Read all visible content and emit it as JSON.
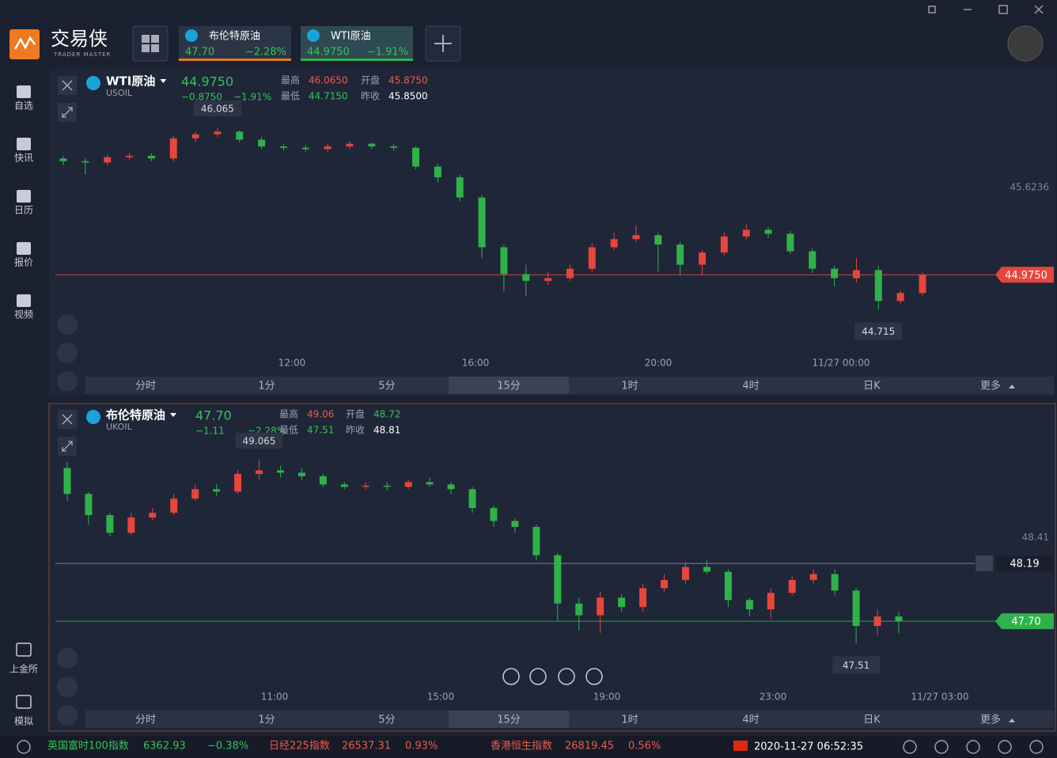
{
  "app": {
    "logo_text": "交易侠",
    "logo_sub": "TRADER MASTER"
  },
  "tabs": [
    {
      "name": "布伦特原油",
      "price": "47.70",
      "change": "−2.28%"
    },
    {
      "name": "WTI原油",
      "price": "44.9750",
      "change": "−1.91%"
    }
  ],
  "sidebar": [
    "自选",
    "快讯",
    "日历",
    "报价",
    "视频"
  ],
  "sidebar_bottom": [
    "上金所",
    "模拟"
  ],
  "panels": [
    {
      "symbol": "WTI原油",
      "code": "USOIL",
      "price": "44.9750",
      "change": "−0.8750",
      "change_pct": "−1.91%",
      "stats": [
        {
          "label": "最高",
          "value": "46.0650",
          "color": "#f05a4a"
        },
        {
          "label": "开盘",
          "value": "45.8750",
          "color": "#f05a4a"
        },
        {
          "label": "最低",
          "value": "44.7150",
          "color": "#35c25a"
        },
        {
          "label": "昨收",
          "value": "45.8500",
          "color": "#ffffff"
        }
      ],
      "chart": {
        "type": "candlestick",
        "ylim": [
          44.4,
          46.46
        ],
        "yticks": [
          45.6236
        ],
        "last": {
          "value": 44.975,
          "label": "44.9750"
        },
        "high_label": 46.065,
        "low_label": 44.715,
        "xlabels": [
          "12:00",
          "16:00",
          "20:00",
          "11/27 00:00"
        ],
        "candles": [
          [
            45.84,
            45.86,
            45.79,
            45.82
          ],
          [
            45.82,
            45.84,
            45.72,
            45.81
          ],
          [
            45.81,
            45.87,
            45.79,
            45.85
          ],
          [
            45.85,
            45.88,
            45.83,
            45.86
          ],
          [
            45.86,
            45.88,
            45.82,
            45.84
          ],
          [
            45.84,
            46.01,
            45.82,
            45.99
          ],
          [
            45.99,
            46.04,
            45.96,
            46.02
          ],
          [
            46.02,
            46.065,
            46.0,
            46.04
          ],
          [
            46.04,
            46.05,
            45.96,
            45.98
          ],
          [
            45.98,
            46.0,
            45.91,
            45.93
          ],
          [
            45.93,
            45.95,
            45.9,
            45.92
          ],
          [
            45.92,
            45.94,
            45.89,
            45.91
          ],
          [
            45.91,
            45.95,
            45.89,
            45.93
          ],
          [
            45.93,
            45.97,
            45.91,
            45.95
          ],
          [
            45.95,
            45.96,
            45.91,
            45.93
          ],
          [
            45.93,
            45.95,
            45.9,
            45.92
          ],
          [
            45.92,
            45.93,
            45.76,
            45.78
          ],
          [
            45.78,
            45.8,
            45.66,
            45.7
          ],
          [
            45.7,
            45.72,
            45.52,
            45.55
          ],
          [
            45.55,
            45.57,
            45.1,
            45.18
          ],
          [
            45.18,
            45.2,
            44.85,
            44.98
          ],
          [
            44.98,
            45.05,
            44.82,
            44.93
          ],
          [
            44.93,
            45.0,
            44.9,
            44.95
          ],
          [
            44.95,
            45.05,
            44.93,
            45.02
          ],
          [
            45.02,
            45.21,
            45.0,
            45.18
          ],
          [
            45.18,
            45.29,
            45.16,
            45.24
          ],
          [
            45.24,
            45.34,
            45.22,
            45.27
          ],
          [
            45.27,
            45.29,
            45.0,
            45.2
          ],
          [
            45.2,
            45.22,
            44.97,
            45.05
          ],
          [
            45.05,
            45.16,
            44.97,
            45.14
          ],
          [
            45.14,
            45.29,
            45.12,
            45.26
          ],
          [
            45.26,
            45.35,
            45.24,
            45.31
          ],
          [
            45.31,
            45.33,
            45.25,
            45.28
          ],
          [
            45.28,
            45.3,
            45.13,
            45.15
          ],
          [
            45.15,
            45.17,
            44.99,
            45.02
          ],
          [
            45.02,
            45.04,
            44.89,
            44.95
          ],
          [
            44.95,
            45.1,
            44.92,
            45.01
          ],
          [
            45.01,
            45.04,
            44.715,
            44.78
          ],
          [
            44.78,
            44.86,
            44.76,
            44.84
          ],
          [
            44.84,
            44.99,
            44.82,
            44.975
          ]
        ]
      },
      "timeframes": [
        "分时",
        "1分",
        "5分",
        "15分",
        "1时",
        "4时",
        "日K",
        "更多"
      ]
    },
    {
      "symbol": "布伦特原油",
      "code": "UKOIL",
      "price": "47.70",
      "change": "−1.11",
      "change_pct": "−2.28%",
      "stats": [
        {
          "label": "最高",
          "value": "49.06",
          "color": "#f05a4a"
        },
        {
          "label": "开盘",
          "value": "48.72",
          "color": "#35c25a"
        },
        {
          "label": "最低",
          "value": "47.51",
          "color": "#35c25a"
        },
        {
          "label": "昨收",
          "value": "48.81",
          "color": "#ffffff"
        }
      ],
      "chart": {
        "type": "candlestick",
        "ylim": [
          47.15,
          49.5
        ],
        "yticks": [
          48.41
        ],
        "last": {
          "value": 47.7,
          "label": "47.70"
        },
        "alert": 48.19,
        "high_label": 49.065,
        "low_label": 47.51,
        "xlabels": [
          "11:00",
          "15:00",
          "19:00",
          "23:00",
          "11/27 03:00"
        ],
        "candles": [
          [
            49.0,
            49.05,
            48.72,
            48.78
          ],
          [
            48.78,
            48.8,
            48.52,
            48.6
          ],
          [
            48.6,
            48.62,
            48.42,
            48.45
          ],
          [
            48.45,
            48.62,
            48.43,
            48.58
          ],
          [
            48.58,
            48.66,
            48.56,
            48.62
          ],
          [
            48.62,
            48.78,
            48.6,
            48.74
          ],
          [
            48.74,
            48.86,
            48.72,
            48.82
          ],
          [
            48.82,
            48.86,
            48.76,
            48.8
          ],
          [
            48.8,
            48.98,
            48.78,
            48.95
          ],
          [
            48.95,
            49.065,
            48.9,
            48.98
          ],
          [
            48.98,
            49.02,
            48.92,
            48.96
          ],
          [
            48.96,
            49.0,
            48.9,
            48.93
          ],
          [
            48.93,
            48.95,
            48.84,
            48.86
          ],
          [
            48.86,
            48.88,
            48.82,
            48.84
          ],
          [
            48.84,
            48.88,
            48.82,
            48.85
          ],
          [
            48.85,
            48.88,
            48.81,
            48.84
          ],
          [
            48.84,
            48.9,
            48.82,
            48.88
          ],
          [
            48.88,
            48.92,
            48.84,
            48.86
          ],
          [
            48.86,
            48.88,
            48.78,
            48.82
          ],
          [
            48.82,
            48.84,
            48.62,
            48.66
          ],
          [
            48.66,
            48.68,
            48.5,
            48.55
          ],
          [
            48.55,
            48.57,
            48.45,
            48.5
          ],
          [
            48.5,
            48.52,
            48.22,
            48.26
          ],
          [
            48.26,
            48.28,
            47.7,
            47.85
          ],
          [
            47.85,
            47.9,
            47.62,
            47.75
          ],
          [
            47.75,
            47.95,
            47.6,
            47.9
          ],
          [
            47.9,
            47.93,
            47.78,
            47.82
          ],
          [
            47.82,
            48.02,
            47.78,
            47.98
          ],
          [
            47.98,
            48.1,
            47.95,
            48.05
          ],
          [
            48.05,
            48.2,
            48.02,
            48.16
          ],
          [
            48.16,
            48.22,
            48.1,
            48.12
          ],
          [
            48.12,
            48.14,
            47.82,
            47.88
          ],
          [
            47.88,
            47.9,
            47.74,
            47.8
          ],
          [
            47.8,
            47.98,
            47.72,
            47.94
          ],
          [
            47.94,
            48.08,
            47.92,
            48.05
          ],
          [
            48.05,
            48.14,
            48.02,
            48.1
          ],
          [
            48.1,
            48.14,
            47.92,
            47.96
          ],
          [
            47.96,
            47.98,
            47.51,
            47.66
          ],
          [
            47.66,
            47.8,
            47.58,
            47.74
          ],
          [
            47.74,
            47.78,
            47.6,
            47.7
          ]
        ]
      },
      "timeframes": [
        "分时",
        "1分",
        "5分",
        "15分",
        "1时",
        "4时",
        "日K",
        "更多"
      ]
    }
  ],
  "footer": {
    "tickers": [
      {
        "name": "英国富时100指数",
        "value": "6362.93",
        "pct": "−0.38%",
        "color": "#35c25a"
      },
      {
        "name": "日经225指数",
        "value": "26537.31",
        "pct": "0.93%",
        "color": "#f05a4a"
      },
      {
        "name": "香港恒生指数",
        "value": "26819.45",
        "pct": "0.56%",
        "color": "#f05a4a"
      }
    ],
    "datetime": "2020-11-27 06:52:35"
  }
}
